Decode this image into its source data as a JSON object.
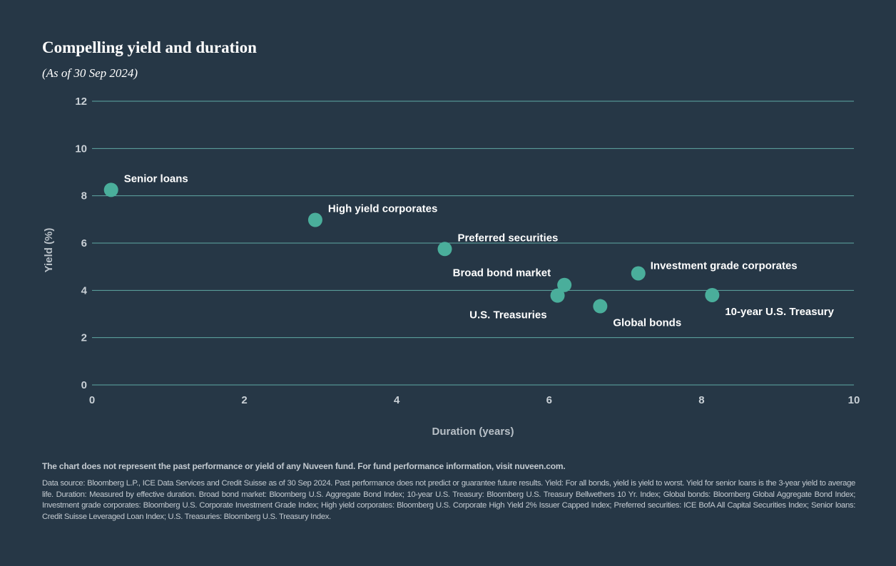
{
  "title": "Compelling yield and duration",
  "subtitle": "(As of 30 Sep 2024)",
  "colors": {
    "background": "#263746",
    "gridline": "#5fa8a4",
    "point": "#4aae9b",
    "text": "#ffffff"
  },
  "chart_data": {
    "type": "scatter",
    "xlabel": "Duration (years)",
    "ylabel": "Yield (%)",
    "xlim": [
      0,
      10
    ],
    "ylim": [
      0,
      12
    ],
    "xticks": [
      "0",
      "2",
      "4",
      "6",
      "8",
      "10"
    ],
    "yticks": [
      "0",
      "2",
      "4",
      "6",
      "8",
      "10",
      "12"
    ],
    "grid": "horizontal",
    "points": [
      {
        "label": "Senior loans",
        "x": 0.25,
        "y": 8.25,
        "label_pos": "upper-right"
      },
      {
        "label": "High yield corporates",
        "x": 2.93,
        "y": 6.98,
        "label_pos": "upper-right"
      },
      {
        "label": "Preferred securities",
        "x": 4.63,
        "y": 5.75,
        "label_pos": "upper-right"
      },
      {
        "label": "Broad bond market",
        "x": 6.2,
        "y": 4.23,
        "label_pos": "upper-left"
      },
      {
        "label": "U.S. Treasuries",
        "x": 6.11,
        "y": 3.78,
        "label_pos": "lower-left"
      },
      {
        "label": "Global bonds",
        "x": 6.67,
        "y": 3.33,
        "label_pos": "lower-right"
      },
      {
        "label": "Investment grade corporates",
        "x": 7.17,
        "y": 4.72,
        "label_pos": "right"
      },
      {
        "label": "10-year U.S. Treasury",
        "x": 8.14,
        "y": 3.8,
        "label_pos": "lower-right"
      }
    ]
  },
  "footnote": "The chart does not represent the past performance or yield of any Nuveen fund. For fund performance information, visit nuveen.com.",
  "source": "Data source: Bloomberg L.P., ICE Data Services and Credit Suisse as of 30 Sep 2024. Past performance does not predict or guarantee future results. Yield: For all bonds, yield is yield to worst. Yield for senior loans is the 3-year yield to average life. Duration: Measured by effective duration. Broad bond market: Bloomberg U.S. Aggregate Bond Index; 10-year U.S. Treasury: Bloomberg U.S. Treasury Bellwethers 10 Yr. Index; Global bonds: Bloomberg Global Aggregate Bond Index; Investment grade corporates: Bloomberg U.S. Corporate Investment Grade Index; High yield corporates: Bloomberg U.S. Corporate High Yield 2% Issuer Capped Index; Preferred securities: ICE BofA All Capital Securities Index; Senior loans: Credit Suisse Leveraged Loan Index; U.S. Treasuries: Bloomberg U.S. Treasury Index."
}
